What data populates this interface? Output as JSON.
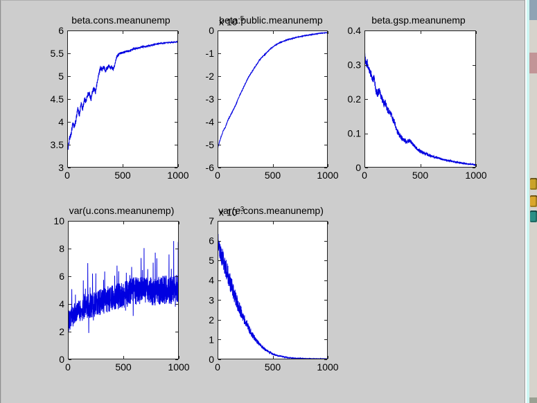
{
  "window": {
    "background": "#cdcdcd",
    "left_border": "#8f8f8f",
    "top_border": "#aeaeae"
  },
  "colors": {
    "line": "#0000e0",
    "plot_background": "#ffffff",
    "axis": "#202020",
    "text": "#000000"
  },
  "desktop_strip": {
    "separator": "#9b9b9b",
    "highlight": "#cdf6f4",
    "background": "#d6d3cc",
    "top_window_block": "#8fa3b4",
    "pink_block": "#c29597",
    "bottom_block": "#9aa193",
    "icons": [
      {
        "name": "yellow-folder-icon",
        "color": "#caa32a"
      },
      {
        "name": "yellow-app-icon",
        "color": "#d9a62a"
      },
      {
        "name": "teal-app-icon",
        "color": "#2a8f86"
      }
    ]
  },
  "chart_data": [
    {
      "type": "line",
      "title": "beta.cons.meanunemp",
      "exponent": null,
      "xlim": [
        0,
        1000
      ],
      "ylim": [
        3,
        6
      ],
      "xticks": [
        0,
        500,
        1000
      ],
      "xtick_labels": [
        "0",
        "500",
        "1000"
      ],
      "yticks": [
        3,
        3.5,
        4,
        4.5,
        5,
        5.5,
        6
      ],
      "ytick_labels": [
        "3",
        "3.5",
        "4",
        "4.5",
        "5",
        "5.5",
        "6"
      ],
      "grid": false,
      "legend": null,
      "trend": [
        [
          0,
          3.55
        ],
        [
          8,
          3.42
        ],
        [
          20,
          3.62
        ],
        [
          35,
          3.72
        ],
        [
          50,
          3.98
        ],
        [
          65,
          3.88
        ],
        [
          80,
          4.05
        ],
        [
          95,
          4.28
        ],
        [
          110,
          4.15
        ],
        [
          125,
          4.4
        ],
        [
          140,
          4.28
        ],
        [
          155,
          4.5
        ],
        [
          170,
          4.45
        ],
        [
          185,
          4.6
        ],
        [
          200,
          4.62
        ],
        [
          215,
          4.5
        ],
        [
          230,
          4.68
        ],
        [
          245,
          4.72
        ],
        [
          255,
          4.65
        ],
        [
          270,
          4.85
        ],
        [
          285,
          5.05
        ],
        [
          300,
          5.18
        ],
        [
          315,
          5.15
        ],
        [
          330,
          5.2
        ],
        [
          345,
          5.12
        ],
        [
          360,
          5.18
        ],
        [
          375,
          5.22
        ],
        [
          390,
          5.18
        ],
        [
          400,
          5.2
        ],
        [
          415,
          5.15
        ],
        [
          430,
          5.25
        ],
        [
          445,
          5.42
        ],
        [
          460,
          5.47
        ],
        [
          475,
          5.5
        ],
        [
          490,
          5.51
        ],
        [
          520,
          5.53
        ],
        [
          560,
          5.56
        ],
        [
          600,
          5.6
        ],
        [
          640,
          5.62
        ],
        [
          680,
          5.64
        ],
        [
          720,
          5.66
        ],
        [
          760,
          5.68
        ],
        [
          800,
          5.7
        ],
        [
          850,
          5.72
        ],
        [
          900,
          5.73
        ],
        [
          950,
          5.74
        ],
        [
          1000,
          5.75
        ]
      ],
      "noise_amp": [
        [
          0,
          0.06
        ],
        [
          300,
          0.05
        ],
        [
          500,
          0.025
        ],
        [
          1000,
          0.01
        ]
      ],
      "spike": null,
      "n_points": 1000
    },
    {
      "type": "line",
      "title": "beta.public.meanunemp",
      "exponent": {
        "prefix": "x 10",
        "sup": "-5"
      },
      "xlim": [
        0,
        1000
      ],
      "ylim": [
        -6,
        0
      ],
      "xticks": [
        0,
        500,
        1000
      ],
      "xtick_labels": [
        "0",
        "500",
        "1000"
      ],
      "yticks": [
        -6,
        -5,
        -4,
        -3,
        -2,
        -1,
        0
      ],
      "ytick_labels": [
        "-6",
        "-5",
        "-4",
        "-3",
        "-2",
        "-1",
        "0"
      ],
      "grid": false,
      "legend": null,
      "trend": [
        [
          0,
          -5.15
        ],
        [
          10,
          -5.0
        ],
        [
          25,
          -4.75
        ],
        [
          40,
          -4.55
        ],
        [
          55,
          -4.35
        ],
        [
          70,
          -4.25
        ],
        [
          85,
          -4.05
        ],
        [
          100,
          -3.85
        ],
        [
          115,
          -3.75
        ],
        [
          130,
          -3.6
        ],
        [
          145,
          -3.45
        ],
        [
          160,
          -3.3
        ],
        [
          175,
          -3.15
        ],
        [
          190,
          -2.95
        ],
        [
          205,
          -2.8
        ],
        [
          220,
          -2.65
        ],
        [
          235,
          -2.5
        ],
        [
          250,
          -2.35
        ],
        [
          265,
          -2.2
        ],
        [
          280,
          -2.05
        ],
        [
          300,
          -1.9
        ],
        [
          320,
          -1.75
        ],
        [
          340,
          -1.6
        ],
        [
          360,
          -1.45
        ],
        [
          380,
          -1.3
        ],
        [
          400,
          -1.18
        ],
        [
          420,
          -1.1
        ],
        [
          440,
          -1.0
        ],
        [
          460,
          -0.9
        ],
        [
          480,
          -0.8
        ],
        [
          500,
          -0.72
        ],
        [
          530,
          -0.63
        ],
        [
          560,
          -0.55
        ],
        [
          600,
          -0.47
        ],
        [
          640,
          -0.4
        ],
        [
          680,
          -0.35
        ],
        [
          720,
          -0.3
        ],
        [
          760,
          -0.26
        ],
        [
          800,
          -0.22
        ],
        [
          840,
          -0.19
        ],
        [
          880,
          -0.16
        ],
        [
          920,
          -0.13
        ],
        [
          960,
          -0.11
        ],
        [
          1000,
          -0.09
        ]
      ],
      "noise_amp": [
        [
          0,
          0.035
        ],
        [
          400,
          0.02
        ],
        [
          1000,
          0.01
        ]
      ],
      "spike": null,
      "n_points": 1000
    },
    {
      "type": "line",
      "title": "beta.gsp.meanunemp",
      "exponent": null,
      "xlim": [
        0,
        1000
      ],
      "ylim": [
        0,
        0.4
      ],
      "xticks": [
        0,
        500,
        1000
      ],
      "xtick_labels": [
        "0",
        "500",
        "1000"
      ],
      "yticks": [
        0,
        0.1,
        0.2,
        0.3,
        0.4
      ],
      "ytick_labels": [
        "0",
        "0.1",
        "0.2",
        "0.3",
        "0.4"
      ],
      "grid": false,
      "legend": null,
      "trend": [
        [
          0,
          0.345
        ],
        [
          6,
          0.315
        ],
        [
          15,
          0.3
        ],
        [
          25,
          0.305
        ],
        [
          35,
          0.29
        ],
        [
          45,
          0.285
        ],
        [
          55,
          0.275
        ],
        [
          65,
          0.27
        ],
        [
          75,
          0.255
        ],
        [
          85,
          0.26
        ],
        [
          95,
          0.24
        ],
        [
          105,
          0.225
        ],
        [
          115,
          0.215
        ],
        [
          125,
          0.22
        ],
        [
          135,
          0.225
        ],
        [
          145,
          0.21
        ],
        [
          155,
          0.2
        ],
        [
          165,
          0.195
        ],
        [
          175,
          0.185
        ],
        [
          185,
          0.19
        ],
        [
          195,
          0.18
        ],
        [
          205,
          0.17
        ],
        [
          215,
          0.165
        ],
        [
          225,
          0.16
        ],
        [
          235,
          0.158
        ],
        [
          245,
          0.15
        ],
        [
          255,
          0.14
        ],
        [
          265,
          0.135
        ],
        [
          275,
          0.125
        ],
        [
          285,
          0.115
        ],
        [
          295,
          0.105
        ],
        [
          305,
          0.1
        ],
        [
          320,
          0.092
        ],
        [
          335,
          0.086
        ],
        [
          350,
          0.082
        ],
        [
          365,
          0.078
        ],
        [
          380,
          0.076
        ],
        [
          395,
          0.077
        ],
        [
          410,
          0.078
        ],
        [
          425,
          0.072
        ],
        [
          440,
          0.066
        ],
        [
          455,
          0.06
        ],
        [
          470,
          0.055
        ],
        [
          490,
          0.05
        ],
        [
          510,
          0.046
        ],
        [
          530,
          0.042
        ],
        [
          550,
          0.04
        ],
        [
          580,
          0.036
        ],
        [
          610,
          0.032
        ],
        [
          640,
          0.03
        ],
        [
          670,
          0.027
        ],
        [
          700,
          0.024
        ],
        [
          730,
          0.022
        ],
        [
          760,
          0.02
        ],
        [
          790,
          0.018
        ],
        [
          820,
          0.016
        ],
        [
          850,
          0.014
        ],
        [
          880,
          0.013
        ],
        [
          910,
          0.011
        ],
        [
          940,
          0.01
        ],
        [
          970,
          0.009
        ],
        [
          1000,
          0.008
        ]
      ],
      "noise_amp": [
        [
          0,
          0.012
        ],
        [
          200,
          0.01
        ],
        [
          400,
          0.006
        ],
        [
          700,
          0.003
        ],
        [
          1000,
          0.002
        ]
      ],
      "spike": null,
      "n_points": 1000
    },
    {
      "type": "line",
      "title": "var(u.cons.meanunemp)",
      "exponent": null,
      "xlim": [
        0,
        1000
      ],
      "ylim": [
        0,
        10
      ],
      "xticks": [
        0,
        500,
        1000
      ],
      "xtick_labels": [
        "0",
        "500",
        "1000"
      ],
      "yticks": [
        0,
        2,
        4,
        6,
        8,
        10
      ],
      "ytick_labels": [
        "0",
        "2",
        "4",
        "6",
        "8",
        "10"
      ],
      "grid": false,
      "legend": null,
      "trend": [
        [
          0,
          2.7
        ],
        [
          30,
          3.0
        ],
        [
          60,
          3.3
        ],
        [
          100,
          3.5
        ],
        [
          150,
          3.7
        ],
        [
          200,
          3.9
        ],
        [
          250,
          4.0
        ],
        [
          300,
          4.15
        ],
        [
          350,
          4.3
        ],
        [
          400,
          4.45
        ],
        [
          450,
          4.55
        ],
        [
          500,
          4.7
        ],
        [
          550,
          4.8
        ],
        [
          600,
          4.95
        ],
        [
          650,
          5.0
        ],
        [
          700,
          5.05
        ],
        [
          750,
          4.95
        ],
        [
          800,
          4.9
        ],
        [
          850,
          5.0
        ],
        [
          900,
          5.05
        ],
        [
          950,
          5.0
        ],
        [
          1000,
          5.1
        ]
      ],
      "noise_amp": [
        [
          0,
          0.75
        ],
        [
          200,
          0.9
        ],
        [
          500,
          1.0
        ],
        [
          1000,
          1.05
        ]
      ],
      "spike": {
        "prob": 0.05,
        "mult": 2.6
      },
      "n_points": 1000
    },
    {
      "type": "line",
      "title": "var(e.cons.meanunemp)",
      "exponent": {
        "prefix": "x 10",
        "sup": "-3"
      },
      "xlim": [
        0,
        1000
      ],
      "ylim": [
        0,
        7
      ],
      "xticks": [
        0,
        500,
        1000
      ],
      "xtick_labels": [
        "0",
        "500",
        "1000"
      ],
      "yticks": [
        0,
        1,
        2,
        3,
        4,
        5,
        6,
        7
      ],
      "ytick_labels": [
        "0",
        "1",
        "2",
        "3",
        "4",
        "5",
        "6",
        "7"
      ],
      "grid": false,
      "legend": null,
      "trend": [
        [
          0,
          6.3
        ],
        [
          10,
          5.9
        ],
        [
          20,
          5.6
        ],
        [
          30,
          5.4
        ],
        [
          40,
          5.2
        ],
        [
          55,
          4.95
        ],
        [
          70,
          4.7
        ],
        [
          85,
          4.45
        ],
        [
          100,
          4.15
        ],
        [
          115,
          3.9
        ],
        [
          130,
          3.65
        ],
        [
          145,
          3.4
        ],
        [
          160,
          3.15
        ],
        [
          175,
          2.9
        ],
        [
          190,
          2.7
        ],
        [
          205,
          2.5
        ],
        [
          220,
          2.3
        ],
        [
          235,
          2.1
        ],
        [
          250,
          1.95
        ],
        [
          265,
          1.8
        ],
        [
          280,
          1.6
        ],
        [
          300,
          1.4
        ],
        [
          320,
          1.2
        ],
        [
          340,
          1.05
        ],
        [
          360,
          0.9
        ],
        [
          380,
          0.78
        ],
        [
          400,
          0.65
        ],
        [
          420,
          0.55
        ],
        [
          440,
          0.47
        ],
        [
          460,
          0.4
        ],
        [
          480,
          0.33
        ],
        [
          500,
          0.28
        ],
        [
          530,
          0.22
        ],
        [
          560,
          0.17
        ],
        [
          600,
          0.12
        ],
        [
          650,
          0.08
        ],
        [
          700,
          0.06
        ],
        [
          750,
          0.05
        ],
        [
          800,
          0.04
        ],
        [
          900,
          0.035
        ],
        [
          1000,
          0.03
        ]
      ],
      "noise_amp": [
        [
          0,
          0.5
        ],
        [
          60,
          0.55
        ],
        [
          150,
          0.4
        ],
        [
          250,
          0.25
        ],
        [
          350,
          0.12
        ],
        [
          450,
          0.06
        ],
        [
          550,
          0.03
        ],
        [
          700,
          0.012
        ],
        [
          1000,
          0.006
        ]
      ],
      "spike": null,
      "n_points": 1000
    }
  ]
}
